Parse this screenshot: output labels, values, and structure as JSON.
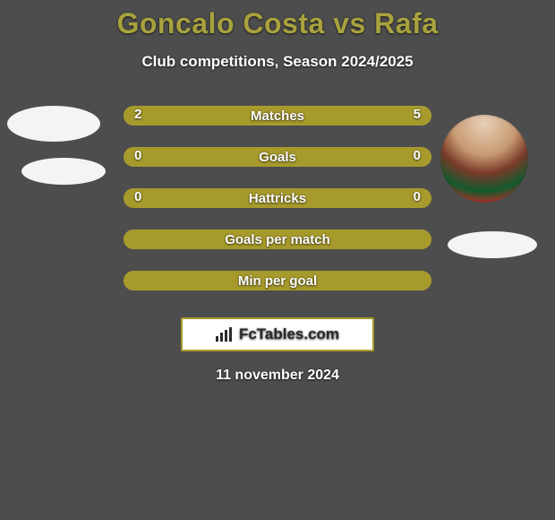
{
  "colors": {
    "background": "#4d4d4d",
    "title": "#a8a23e",
    "text": "#ffffff",
    "bar_fill": "#a79a2c",
    "bar_empty": "#6b6b6b",
    "footer_border": "#a79a2c",
    "footer_bg": "#ffffff",
    "footer_text": "#2b2b2b"
  },
  "title": "Goncalo Costa vs Rafa",
  "subtitle": "Club competitions, Season 2024/2025",
  "rows": [
    {
      "label": "Matches",
      "left": "2",
      "right": "5",
      "left_pct": 28.6,
      "right_pct": 71.4,
      "left_color": "#a79a2c",
      "right_color": "#a79a2c",
      "show_vals": true
    },
    {
      "label": "Goals",
      "left": "0",
      "right": "0",
      "left_pct": 50,
      "right_pct": 50,
      "left_color": "#a79a2c",
      "right_color": "#a79a2c",
      "show_vals": true
    },
    {
      "label": "Hattricks",
      "left": "0",
      "right": "0",
      "left_pct": 50,
      "right_pct": 50,
      "left_color": "#a79a2c",
      "right_color": "#a79a2c",
      "show_vals": true
    },
    {
      "label": "Goals per match",
      "left": "",
      "right": "",
      "left_pct": 100,
      "right_pct": 0,
      "left_color": "#a79a2c",
      "right_color": "#a79a2c",
      "show_vals": false
    },
    {
      "label": "Min per goal",
      "left": "",
      "right": "",
      "left_pct": 100,
      "right_pct": 0,
      "left_color": "#a79a2c",
      "right_color": "#a79a2c",
      "show_vals": false
    }
  ],
  "footer_logo": "FcTables.com",
  "footer_date": "11 november 2024",
  "fontsize": {
    "title": 32,
    "subtitle": 17,
    "row_label": 15,
    "row_val": 15,
    "footer_logo": 17,
    "footer_date": 16
  }
}
